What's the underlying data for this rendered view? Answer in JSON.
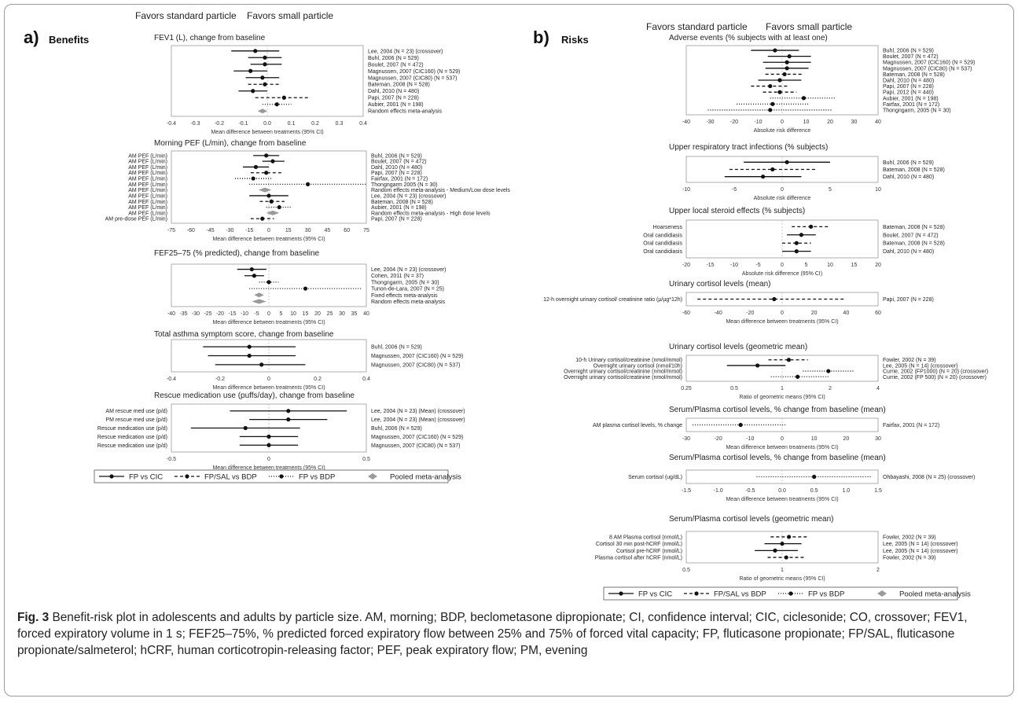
{
  "panels": {
    "a": {
      "letter": "a)",
      "title": "Benefits",
      "left_header": "Favors standard particle",
      "right_header": "Favors small particle"
    },
    "b": {
      "letter": "b)",
      "title": "Risks",
      "left_header": "Favors standard particle",
      "right_header": "Favors small particle"
    }
  },
  "legends": [
    {
      "items": [
        "FP vs CIC",
        "FP/SAL vs BDP",
        "FP vs BDP",
        "Pooled meta-analysis"
      ]
    },
    {
      "items": [
        "FP vs CIC",
        "FP/SAL vs BDP",
        "FP vs BDP",
        "Pooled meta-analysis"
      ]
    }
  ],
  "caption": {
    "label": "Fig. 3",
    "text": "Benefit-risk plot in adolescents and adults by particle size. AM, morning; BDP, beclometasone dipropionate; CI, confidence interval; CIC, ciclesonide; CO, crossover; FEV1, forced expiratory volume in 1 s; FEF25–75%, % predicted forced expiratory flow between 25% and 75% of forced vital capacity; FP, fluticasone propionate; FP/SAL, fluticasone propionate/salmeterol; hCRF, human corticotropin-releasing factor; PEF, peak expiratory flow; PM, evening"
  },
  "colors": {
    "line": "#111111",
    "pooled": "#9a9a9a",
    "axis": "#999999",
    "frame": "#9a9a9a"
  },
  "chart_data": [
    {
      "panel": "a",
      "type": "forest",
      "title": "FEV1 (L), change from baseline",
      "xlabel": "Mean difference between treatments (95% CI)",
      "xlim": [
        -0.4,
        0.4
      ],
      "log": false,
      "ticks": [
        "-0.4",
        "-0.3",
        "-0.2",
        "-0.1",
        "0.0",
        "0.1",
        "0.2",
        "0.3",
        "0.4"
      ],
      "rows": [
        {
          "study": "Lee, 2004 (N = 23) (crossover)",
          "mean": -0.05,
          "lo": -0.15,
          "hi": 0.05,
          "style": "solid"
        },
        {
          "study": "Buhl, 2006 (N = 529)",
          "mean": -0.01,
          "lo": -0.08,
          "hi": 0.06,
          "style": "solid"
        },
        {
          "study": "Boulet, 2007 (N = 472)",
          "mean": -0.01,
          "lo": -0.07,
          "hi": 0.06,
          "style": "solid"
        },
        {
          "study": "Magnussen, 2007 (CIC160) (N = 529)",
          "mean": -0.07,
          "lo": -0.14,
          "hi": 0.0,
          "style": "solid"
        },
        {
          "study": "Magnussen, 2007 (CIC80) (N = 537)",
          "mean": -0.02,
          "lo": -0.09,
          "hi": 0.05,
          "style": "solid"
        },
        {
          "study": "Bateman, 2008 (N = 528)",
          "mean": -0.01,
          "lo": -0.08,
          "hi": 0.05,
          "style": "dashed"
        },
        {
          "study": "Dahl, 2010 (N = 480)",
          "mean": -0.06,
          "lo": -0.12,
          "hi": 0.0,
          "style": "solid"
        },
        {
          "study": "Papi, 2007 (N = 228)",
          "mean": 0.07,
          "lo": -0.05,
          "hi": 0.18,
          "style": "dashed"
        },
        {
          "study": "Aubier, 2001 (N = 198)",
          "mean": 0.04,
          "lo": -0.02,
          "hi": 0.1,
          "style": "dotted"
        },
        {
          "study": "Random effects meta-analysis",
          "mean": -0.02,
          "lo": -0.04,
          "hi": 0.0,
          "style": "pooled"
        }
      ]
    },
    {
      "panel": "a",
      "type": "forest",
      "title": "Morning PEF (L/min), change from baseline",
      "xlabel": "Mean difference between treatments (95% CI)",
      "xlim": [
        -75,
        75
      ],
      "log": false,
      "ticks": [
        "-75",
        "-60",
        "-45",
        "-30",
        "-15",
        "0",
        "15",
        "30",
        "45",
        "60",
        "75"
      ],
      "rows": [
        {
          "label": "AM PEF (L/min)",
          "study": "Buhl, 2006 (N = 529)",
          "mean": -2,
          "lo": -12,
          "hi": 8,
          "style": "solid"
        },
        {
          "label": "AM PEF (L/min)",
          "study": "Boulet, 2007 (N = 472)",
          "mean": 3,
          "lo": -5,
          "hi": 12,
          "style": "solid"
        },
        {
          "label": "AM PEF (L/min)",
          "study": "Dahl, 2010 (N = 480)",
          "mean": -10,
          "lo": -20,
          "hi": 0,
          "style": "solid"
        },
        {
          "label": "AM PEF (L/min)",
          "study": "Papi, 2007 (N = 228)",
          "mean": -2,
          "lo": -14,
          "hi": 10,
          "style": "dashed"
        },
        {
          "label": "AM PEF (L/min)",
          "study": "Fairfax, 2001 (N = 172)",
          "mean": -12,
          "lo": -26,
          "hi": 2,
          "style": "dotted"
        },
        {
          "label": "AM PEF (L/min)",
          "study": "Thongngarm 2005 (N = 30)",
          "mean": 30,
          "lo": -15,
          "hi": 75,
          "style": "dotted"
        },
        {
          "label": "AM PEF (L/min)",
          "study": "Random effects meta-analysis - Medium/Low dose levels",
          "mean": -3,
          "lo": -8,
          "hi": 2,
          "style": "pooled"
        },
        {
          "label": "AM PEF (L/min)",
          "study": "Lee, 2004 (N = 23) (crossover)",
          "mean": 0,
          "lo": -15,
          "hi": 15,
          "style": "solid"
        },
        {
          "label": "AM PEF (L/min)",
          "study": "Bateman, 2008 (N = 528)",
          "mean": 2,
          "lo": -7,
          "hi": 12,
          "style": "dashed"
        },
        {
          "label": "AM PEF (L/min)",
          "study": "Aubier, 2001 (N = 198)",
          "mean": 8,
          "lo": -2,
          "hi": 18,
          "style": "dotted"
        },
        {
          "label": "AM PEF (L/min)",
          "study": "Random effects meta-analysis - High dose levels",
          "mean": 3,
          "lo": -2,
          "hi": 8,
          "style": "pooled"
        },
        {
          "label": "AM pre-dose PEF (L/min)",
          "study": "Papi, 2007 (N = 228)",
          "mean": -5,
          "lo": -14,
          "hi": 4,
          "style": "dashed"
        }
      ]
    },
    {
      "panel": "a",
      "type": "forest",
      "title": "FEF25–75 (% predicted), change from baseline",
      "xlabel": "Mean difference between treatments (95% CI)",
      "xlim": [
        -40,
        40
      ],
      "log": false,
      "ticks": [
        "-40",
        "-35",
        "-30",
        "-25",
        "-20",
        "-15",
        "-10",
        "-5",
        "0",
        "5",
        "10",
        "15",
        "20",
        "25",
        "30",
        "35",
        "40"
      ],
      "rows": [
        {
          "study": "Lee, 2004 (N = 23) (crossover)",
          "mean": -7,
          "lo": -13,
          "hi": -1,
          "style": "solid"
        },
        {
          "study": "Cohen, 2011 (N = 37)",
          "mean": -6,
          "lo": -10,
          "hi": -2,
          "style": "solid"
        },
        {
          "study": "Thongngarm, 2005 (N = 30)",
          "mean": 0,
          "lo": -4,
          "hi": 4,
          "style": "dotted"
        },
        {
          "study": "Tunon-de-Lara, 2007 (N = 25)",
          "mean": 15,
          "lo": -8,
          "hi": 38,
          "style": "dotted"
        },
        {
          "study": "Fixed effects meta-analysis",
          "mean": -4,
          "lo": -6,
          "hi": -2,
          "style": "pooled"
        },
        {
          "study": "Random effects meta-analysis",
          "mean": -4,
          "lo": -7,
          "hi": -1,
          "style": "pooled"
        }
      ]
    },
    {
      "panel": "a",
      "type": "forest",
      "title": "Total asthma symptom score, change from baseline",
      "xlabel": "Mean difference between treatments (95% CI)",
      "xlim": [
        -0.4,
        0.4
      ],
      "log": false,
      "ticks": [
        "-0.4",
        "-0.2",
        "0",
        "0.2",
        "0.4"
      ],
      "rows": [
        {
          "study": "Buhl, 2006 (N = 529)",
          "mean": -0.08,
          "lo": -0.27,
          "hi": 0.11,
          "style": "solid"
        },
        {
          "study": "Magnussen, 2007 (CIC160) (N = 529)",
          "mean": -0.08,
          "lo": -0.25,
          "hi": 0.11,
          "style": "solid"
        },
        {
          "study": "Magnussen, 2007 (CIC80) (N = 537)",
          "mean": -0.03,
          "lo": -0.22,
          "hi": 0.15,
          "style": "solid"
        }
      ]
    },
    {
      "panel": "a",
      "type": "forest",
      "title": "Rescue medication use (puffs/day), change from baseline",
      "xlabel": "Mean difference between treatments (95% CI)",
      "xlim": [
        -0.5,
        0.5
      ],
      "log": false,
      "ticks": [
        "-0.5",
        "0",
        "0.5"
      ],
      "rows": [
        {
          "label": "AM rescue med use (p/d)",
          "study": "Lee, 2004 (N = 23) (Mean) (crossover)",
          "mean": 0.1,
          "lo": -0.2,
          "hi": 0.4,
          "style": "solid"
        },
        {
          "label": "PM rescue med use (p/d)",
          "study": "Lee, 2004 (N = 23) (Mean) (crossover)",
          "mean": 0.1,
          "lo": -0.1,
          "hi": 0.3,
          "style": "solid"
        },
        {
          "label": "Rescue medication use (p/d)",
          "study": "Buhl, 2006 (N = 529)",
          "mean": -0.12,
          "lo": -0.4,
          "hi": 0.16,
          "style": "solid"
        },
        {
          "label": "Rescue medication use (p/d)",
          "study": "Magnussen, 2007 (CIC160) (N = 529)",
          "mean": 0.0,
          "lo": -0.15,
          "hi": 0.15,
          "style": "solid"
        },
        {
          "label": "Rescue medication use (p/d)",
          "study": "Magnussen, 2007 (CIC80) (N = 537)",
          "mean": 0.0,
          "lo": -0.15,
          "hi": 0.15,
          "style": "solid"
        }
      ]
    },
    {
      "panel": "b",
      "type": "forest",
      "title": "Adverse events (% subjects with at least one)",
      "xlabel": "Absolute risk difference",
      "xlim": [
        -40,
        40
      ],
      "log": false,
      "ticks": [
        "-40",
        "-30",
        "-20",
        "-10",
        "0",
        "10",
        "20",
        "30",
        "40"
      ],
      "rows": [
        {
          "study": "Buhl, 2006 (N = 529)",
          "mean": -3,
          "lo": -13,
          "hi": 7,
          "style": "solid"
        },
        {
          "study": "Boulet, 2007 (N = 472)",
          "mean": 3,
          "lo": -6,
          "hi": 12,
          "style": "solid"
        },
        {
          "study": "Magnussen, 2007 (CIC160) (N = 529)",
          "mean": 2,
          "lo": -8,
          "hi": 12,
          "style": "solid"
        },
        {
          "study": "Magnussen, 2007 (CIC80) (N = 537)",
          "mean": 2,
          "lo": -7,
          "hi": 11,
          "style": "solid"
        },
        {
          "study": "Bateman, 2008 (N = 528)",
          "mean": 1,
          "lo": -7,
          "hi": 9,
          "style": "dashed"
        },
        {
          "study": "Dahl, 2010 (N = 480)",
          "mean": -1,
          "lo": -10,
          "hi": 8,
          "style": "solid"
        },
        {
          "study": "Papi, 2007 (N = 228)",
          "mean": -5,
          "lo": -13,
          "hi": 3,
          "style": "dashed"
        },
        {
          "study": "Papi, 2012 (N = 440)",
          "mean": -1,
          "lo": -8,
          "hi": 6,
          "style": "dashed"
        },
        {
          "study": "Aubier, 2001 (N = 198)",
          "mean": 9,
          "lo": -5,
          "hi": 22,
          "style": "dotted"
        },
        {
          "study": "Fairfax, 2001 (N = 172)",
          "mean": -4,
          "lo": -19,
          "hi": 11,
          "style": "dotted"
        },
        {
          "study": "Thongngarm, 2005 (N = 30)",
          "mean": -5,
          "lo": -31,
          "hi": 21,
          "style": "dotted"
        }
      ]
    },
    {
      "panel": "b",
      "type": "forest",
      "title": "Upper respiratory tract infections (% subjects)",
      "xlabel": "Absolute risk difference",
      "xlim": [
        -10,
        10
      ],
      "log": false,
      "ticks": [
        "-10",
        "-5",
        "0",
        "5",
        "10"
      ],
      "rows": [
        {
          "study": "Buhl, 2006 (N = 529)",
          "mean": 0.5,
          "lo": -4,
          "hi": 5,
          "style": "solid"
        },
        {
          "study": "Bateman, 2008 (N = 528)",
          "mean": -1,
          "lo": -5.5,
          "hi": 3.5,
          "style": "dashed"
        },
        {
          "study": "Dahl, 2010 (N = 480)",
          "mean": -2,
          "lo": -6,
          "hi": 2,
          "style": "solid"
        }
      ]
    },
    {
      "panel": "b",
      "type": "forest",
      "title": "Upper local steroid effects (% subjects)",
      "xlabel": "Absolute risk difference (95% CI)",
      "xlim": [
        -20,
        20
      ],
      "log": false,
      "ticks": [
        "-20",
        "-15",
        "-10",
        "-5",
        "0",
        "5",
        "10",
        "15",
        "20"
      ],
      "rows": [
        {
          "label": "Hoarseness",
          "study": "Bateman, 2008 (N = 528)",
          "mean": 6,
          "lo": 2,
          "hi": 10,
          "style": "dashed"
        },
        {
          "label": "Oral candidiasis",
          "study": "Boulet, 2007 (N = 472)",
          "mean": 4,
          "lo": 1,
          "hi": 7,
          "style": "solid"
        },
        {
          "label": "Oral candidiasis",
          "study": "Bateman, 2008 (N = 528)",
          "mean": 3,
          "lo": 0,
          "hi": 6,
          "style": "dashed"
        },
        {
          "label": "Oral candidiasis",
          "study": "Dahl, 2010 (N = 480)",
          "mean": 3,
          "lo": 0,
          "hi": 6,
          "style": "solid"
        }
      ]
    },
    {
      "panel": "b",
      "type": "forest",
      "title": "Urinary cortisol levels (mean)",
      "xlabel": "Mean difference between treatments (95% CI)",
      "xlim": [
        -60,
        60
      ],
      "log": false,
      "ticks": [
        "-60",
        "-40",
        "-20",
        "0",
        "20",
        "40",
        "60"
      ],
      "rows": [
        {
          "label": "12-h overnight urinary cortisol/ creatinine ratio (µ/µg*12h)",
          "study": "Papi, 2007 (N = 228)",
          "mean": -5,
          "lo": -53,
          "hi": 40,
          "style": "dashed"
        }
      ]
    },
    {
      "panel": "b",
      "type": "forest",
      "title": "Urinary cortisol levels (geometric mean)",
      "xlabel": "Ratio of geometric means (95% CI)",
      "xlim": [
        0.25,
        4
      ],
      "log": true,
      "ticks": [
        "0.25",
        "0.5",
        "1",
        "2",
        "4"
      ],
      "rows": [
        {
          "label": "10-h Urinary cortisol/creatinine (nmol/mmol)",
          "study": "Fowler, 2002 (N = 39)",
          "mean": 1.1,
          "lo": 0.82,
          "hi": 1.45,
          "style": "dashed"
        },
        {
          "label": "Overnight urinary cortisol (nmol/10h)",
          "study": "Lee, 2005 (N = 14) (crossover)",
          "mean": 0.7,
          "lo": 0.45,
          "hi": 1.05,
          "style": "solid"
        },
        {
          "label": "Overnight urinary cortisol/creatinine (nmol/mmol)",
          "study": "Currie, 2002 (FP1000) (N = 20) (crossover)",
          "mean": 1.95,
          "lo": 1.35,
          "hi": 2.85,
          "style": "dotted"
        },
        {
          "label": "Overnight urinary cortisol/creatinine (nmol/mmol)",
          "study": "Currie, 2002 (FP 500) (N = 20) (crossover)",
          "mean": 1.25,
          "lo": 0.85,
          "hi": 1.95,
          "style": "dotted"
        }
      ]
    },
    {
      "panel": "b",
      "type": "forest",
      "title": "Serum/Plasma cortisol levels, % change from baseline (mean)",
      "xlabel": "Mean difference between treatments (95% CI)",
      "xlim": [
        -30,
        30
      ],
      "log": false,
      "ticks": [
        "-30",
        "-20",
        "-10",
        "0",
        "10",
        "20",
        "30"
      ],
      "rows": [
        {
          "label": "AM plasma cortisol levels, % change",
          "study": "Fairfax, 2001 (N = 172)",
          "mean": -13,
          "lo": -28,
          "hi": 1,
          "style": "dotted"
        }
      ]
    },
    {
      "panel": "b",
      "type": "forest",
      "title": "Serum/Plasma cortisol levels, % change from baseline (mean)",
      "xlabel": "Mean difference between treatments (95% CI)",
      "xlim": [
        -1.5,
        1.5
      ],
      "log": false,
      "ticks": [
        "-1.5",
        "-1.0",
        "-0.5",
        "0.0",
        "0.5",
        "1.0",
        "1.5"
      ],
      "rows": [
        {
          "label": "Serum cortisol (ug/dL)",
          "study": "Ohbayashi, 2008 (N = 25) (crossover)",
          "mean": 0.5,
          "lo": -0.4,
          "hi": 1.4,
          "style": "dotted"
        }
      ]
    },
    {
      "panel": "b",
      "type": "forest",
      "title": "Serum/Plasma cortisol levels (geometric mean)",
      "xlabel": "Ratio of geometric means (95% CI)",
      "xlim": [
        0.5,
        2
      ],
      "log": true,
      "ticks": [
        "0.5",
        "1",
        "2"
      ],
      "rows": [
        {
          "label": "8 AM Plasma cortisol (nmol/L)",
          "study": "Fowler, 2002 (N = 39)",
          "mean": 1.05,
          "lo": 0.92,
          "hi": 1.2,
          "style": "dashed"
        },
        {
          "label": "Cortisol 30 min post-hCRF (nmol/L)",
          "study": "Lee, 2005 (N = 14) (crossover)",
          "mean": 1.0,
          "lo": 0.88,
          "hi": 1.15,
          "style": "solid"
        },
        {
          "label": "Cortisol pre-hCRF (nmol/L)",
          "study": "Lee, 2005 (N = 14) (crossover)",
          "mean": 0.95,
          "lo": 0.82,
          "hi": 1.12,
          "style": "solid"
        },
        {
          "label": "Plasma cortisol after hCRF (nmol/L)",
          "study": "Fowler, 2002 (N = 39)",
          "mean": 1.03,
          "lo": 0.9,
          "hi": 1.18,
          "style": "dashed"
        }
      ]
    }
  ]
}
